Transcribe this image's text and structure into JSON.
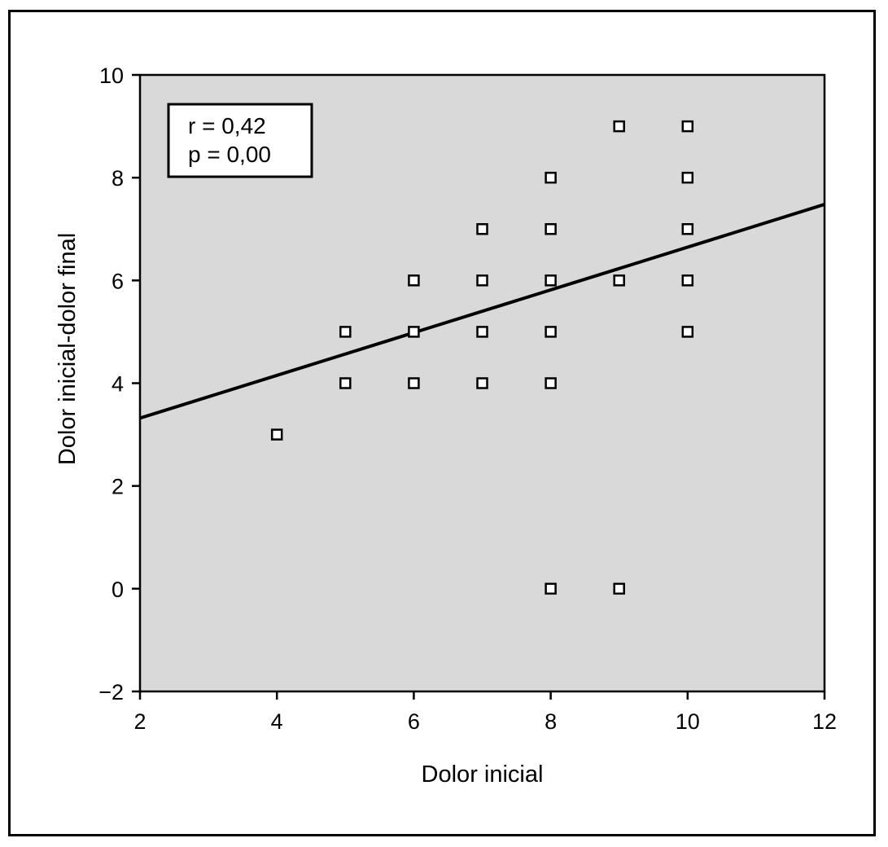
{
  "chart_data": {
    "type": "scatter",
    "xlabel": "Dolor inicial",
    "ylabel": "Dolor inicial-dolor final",
    "xlim": [
      2,
      12
    ],
    "ylim": [
      -2,
      10
    ],
    "xticks": [
      "2",
      "4",
      "6",
      "8",
      "10",
      "12"
    ],
    "yticks": [
      "−2",
      "0",
      "2",
      "4",
      "6",
      "8",
      "10"
    ],
    "points": [
      {
        "x": 4,
        "y": 3
      },
      {
        "x": 5,
        "y": 5
      },
      {
        "x": 5,
        "y": 4
      },
      {
        "x": 6,
        "y": 6
      },
      {
        "x": 6,
        "y": 5
      },
      {
        "x": 6,
        "y": 4
      },
      {
        "x": 7,
        "y": 7
      },
      {
        "x": 7,
        "y": 6
      },
      {
        "x": 7,
        "y": 5
      },
      {
        "x": 7,
        "y": 4
      },
      {
        "x": 8,
        "y": 8
      },
      {
        "x": 8,
        "y": 7
      },
      {
        "x": 8,
        "y": 6
      },
      {
        "x": 8,
        "y": 5
      },
      {
        "x": 8,
        "y": 4
      },
      {
        "x": 8,
        "y": 0
      },
      {
        "x": 9,
        "y": 9
      },
      {
        "x": 9,
        "y": 6
      },
      {
        "x": 9,
        "y": 0
      },
      {
        "x": 10,
        "y": 9
      },
      {
        "x": 10,
        "y": 8
      },
      {
        "x": 10,
        "y": 7
      },
      {
        "x": 10,
        "y": 6
      },
      {
        "x": 10,
        "y": 5
      }
    ],
    "fit_line": {
      "x1": 2,
      "y1": 3.32,
      "x2": 12,
      "y2": 7.48
    },
    "annotation": [
      "r = 0,42",
      "p = 0,00"
    ],
    "plot_background": "#d9d9d9",
    "grid": false,
    "marker": "hollow-square"
  }
}
